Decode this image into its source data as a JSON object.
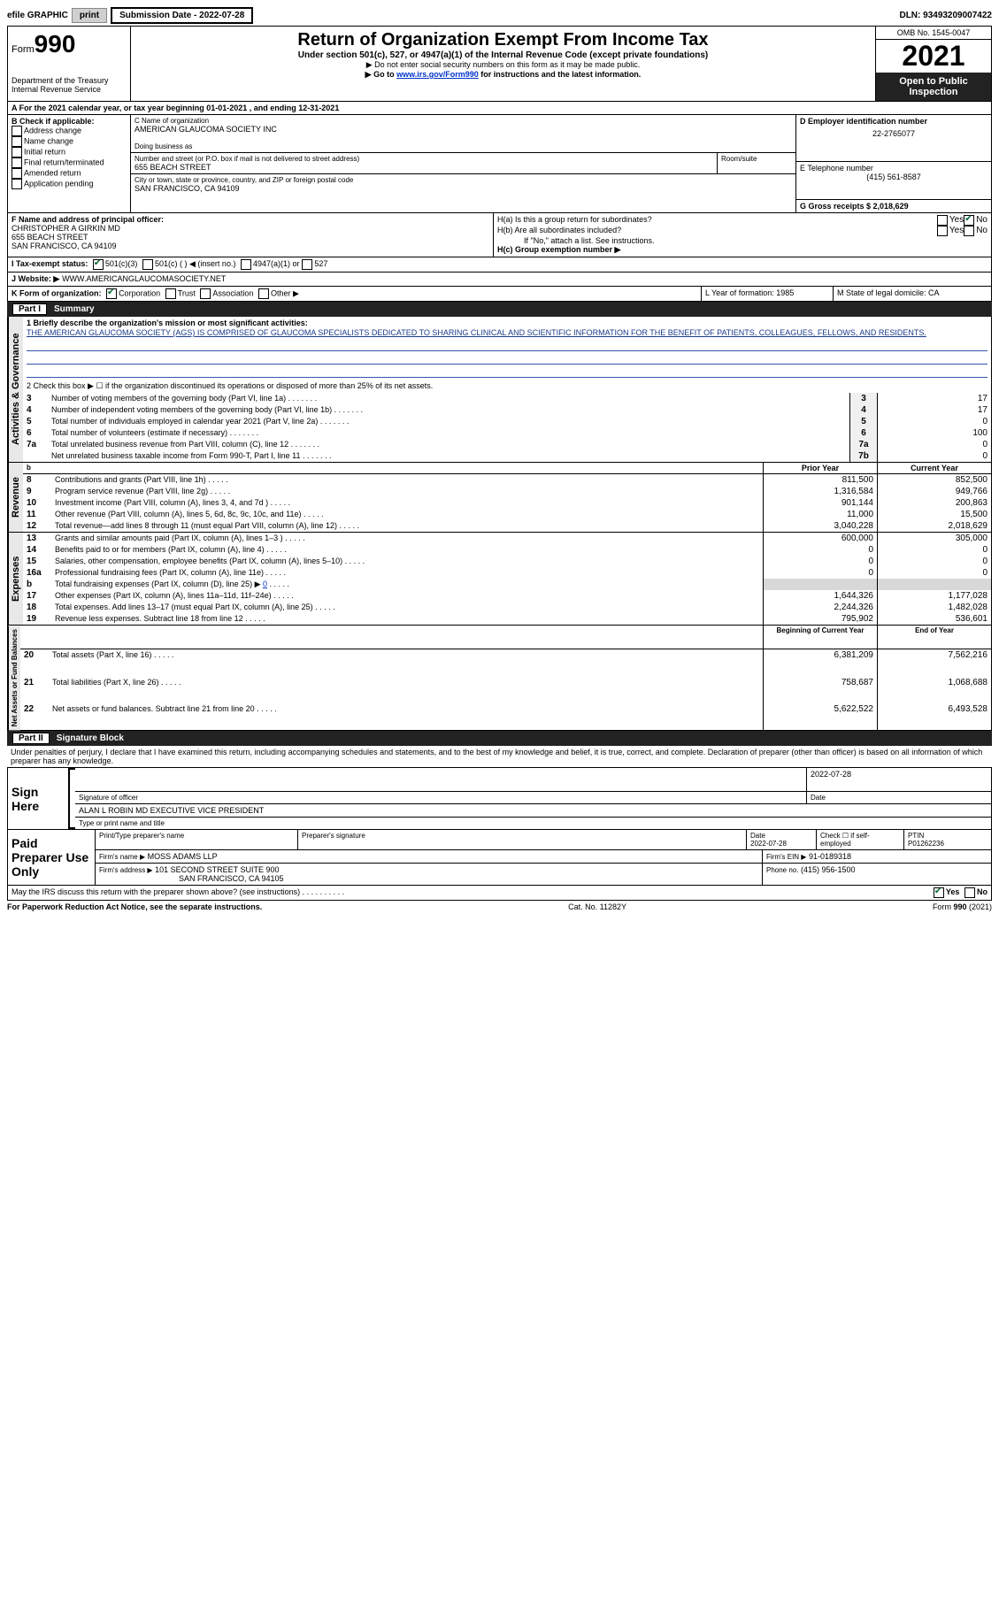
{
  "topbar": {
    "efile": "efile GRAPHIC",
    "print_btn": "print",
    "sub_date_label": "Submission Date - 2022-07-28",
    "dln": "DLN: 93493209007422"
  },
  "header": {
    "form_word": "Form",
    "form_num": "990",
    "dept": "Department of the Treasury",
    "irs": "Internal Revenue Service",
    "title": "Return of Organization Exempt From Income Tax",
    "sub": "Under section 501(c), 527, or 4947(a)(1) of the Internal Revenue Code (except private foundations)",
    "note1": "▶ Do not enter social security numbers on this form as it may be made public.",
    "note2_pre": "▶ Go to ",
    "note2_link": "www.irs.gov/Form990",
    "note2_post": " for instructions and the latest information.",
    "omb": "OMB No. 1545-0047",
    "year": "2021",
    "open": "Open to Public Inspection"
  },
  "A": {
    "line": "A For the 2021 calendar year, or tax year beginning 01-01-2021   , and ending 12-31-2021"
  },
  "B": {
    "label": "B Check if applicable:",
    "opts": [
      "Address change",
      "Name change",
      "Initial return",
      "Final return/terminated",
      "Amended return",
      "Application pending"
    ]
  },
  "C": {
    "name_label": "C Name of organization",
    "name": "AMERICAN GLAUCOMA SOCIETY INC",
    "dba_label": "Doing business as",
    "street_label": "Number and street (or P.O. box if mail is not delivered to street address)",
    "room_label": "Room/suite",
    "street": "655 BEACH STREET",
    "city_label": "City or town, state or province, country, and ZIP or foreign postal code",
    "city": "SAN FRANCISCO, CA  94109"
  },
  "D": {
    "label": "D Employer identification number",
    "val": "22-2765077"
  },
  "E": {
    "label": "E Telephone number",
    "val": "(415) 561-8587"
  },
  "G": {
    "label": "G Gross receipts $ 2,018,629"
  },
  "F": {
    "label": "F  Name and address of principal officer:",
    "name": "CHRISTOPHER A GIRKIN MD",
    "street": "655 BEACH STREET",
    "city": "SAN FRANCISCO, CA  94109"
  },
  "H": {
    "a": "H(a)  Is this a group return for subordinates?",
    "b": "H(b)  Are all subordinates included?",
    "b_note": "If \"No,\" attach a list. See instructions.",
    "c": "H(c)  Group exemption number ▶"
  },
  "I": {
    "label": "I  Tax-exempt status:",
    "o1": "501(c)(3)",
    "o2": "501(c) (  ) ◀ (insert no.)",
    "o3": "4947(a)(1) or",
    "o4": "527"
  },
  "J": {
    "label": "J   Website: ▶",
    "val": "WWW.AMERICANGLAUCOMASOCIETY.NET"
  },
  "K": {
    "label": "K Form of organization:",
    "o1": "Corporation",
    "o2": "Trust",
    "o3": "Association",
    "o4": "Other ▶"
  },
  "L": {
    "label": "L Year of formation: 1985"
  },
  "M": {
    "label": "M State of legal domicile: CA"
  },
  "part1": {
    "title": "Summary",
    "line1_label": "1  Briefly describe the organization's mission or most significant activities:",
    "mission": "THE AMERICAN GLAUCOMA SOCIETY (AGS) IS COMPRISED OF GLAUCOMA SPECIALISTS DEDICATED TO SHARING CLINICAL AND SCIENTIFIC INFORMATION FOR THE BENEFIT OF PATIENTS, COLLEAGUES, FELLOWS, AND RESIDENTS.",
    "line2": "2   Check this box ▶ ☐  if the organization discontinued its operations or disposed of more than 25% of its net assets.",
    "rows_simple": [
      {
        "n": "3",
        "t": "Number of voting members of the governing body (Part VI, line 1a)",
        "box": "3",
        "v": "17"
      },
      {
        "n": "4",
        "t": "Number of independent voting members of the governing body (Part VI, line 1b)",
        "box": "4",
        "v": "17"
      },
      {
        "n": "5",
        "t": "Total number of individuals employed in calendar year 2021 (Part V, line 2a)",
        "box": "5",
        "v": "0"
      },
      {
        "n": "6",
        "t": "Total number of volunteers (estimate if necessary)",
        "box": "6",
        "v": "100"
      },
      {
        "n": "7a",
        "t": "Total unrelated business revenue from Part VIII, column (C), line 12",
        "box": "7a",
        "v": "0"
      },
      {
        "n": "",
        "t": "Net unrelated business taxable income from Form 990-T, Part I, line 11",
        "box": "7b",
        "v": "0"
      }
    ],
    "prior_hdr": "Prior Year",
    "curr_hdr": "Current Year",
    "rev_rows": [
      {
        "n": "8",
        "t": "Contributions and grants (Part VIII, line 1h)",
        "p": "811,500",
        "c": "852,500"
      },
      {
        "n": "9",
        "t": "Program service revenue (Part VIII, line 2g)",
        "p": "1,316,584",
        "c": "949,766"
      },
      {
        "n": "10",
        "t": "Investment income (Part VIII, column (A), lines 3, 4, and 7d )",
        "p": "901,144",
        "c": "200,863"
      },
      {
        "n": "11",
        "t": "Other revenue (Part VIII, column (A), lines 5, 6d, 8c, 9c, 10c, and 11e)",
        "p": "11,000",
        "c": "15,500"
      },
      {
        "n": "12",
        "t": "Total revenue—add lines 8 through 11 (must equal Part VIII, column (A), line 12)",
        "p": "3,040,228",
        "c": "2,018,629"
      }
    ],
    "exp_rows": [
      {
        "n": "13",
        "t": "Grants and similar amounts paid (Part IX, column (A), lines 1–3 )",
        "p": "600,000",
        "c": "305,000"
      },
      {
        "n": "14",
        "t": "Benefits paid to or for members (Part IX, column (A), line 4)",
        "p": "0",
        "c": "0"
      },
      {
        "n": "15",
        "t": "Salaries, other compensation, employee benefits (Part IX, column (A), lines 5–10)",
        "p": "0",
        "c": "0"
      },
      {
        "n": "16a",
        "t": "Professional fundraising fees (Part IX, column (A), line 11e)",
        "p": "0",
        "c": "0"
      },
      {
        "n": "b",
        "t": "Total fundraising expenses (Part IX, column (D), line 25) ▶",
        "p": "__shade__",
        "c": "__shade__",
        "extra": "0"
      },
      {
        "n": "17",
        "t": "Other expenses (Part IX, column (A), lines 11a–11d, 11f–24e)",
        "p": "1,644,326",
        "c": "1,177,028"
      },
      {
        "n": "18",
        "t": "Total expenses. Add lines 13–17 (must equal Part IX, column (A), line 25)",
        "p": "2,244,326",
        "c": "1,482,028"
      },
      {
        "n": "19",
        "t": "Revenue less expenses. Subtract line 18 from line 12",
        "p": "795,902",
        "c": "536,601"
      }
    ],
    "na_hdr1": "Beginning of Current Year",
    "na_hdr2": "End of Year",
    "na_rows": [
      {
        "n": "20",
        "t": "Total assets (Part X, line 16)",
        "p": "6,381,209",
        "c": "7,562,216"
      },
      {
        "n": "21",
        "t": "Total liabilities (Part X, line 26)",
        "p": "758,687",
        "c": "1,068,688"
      },
      {
        "n": "22",
        "t": "Net assets or fund balances. Subtract line 21 from line 20",
        "p": "5,622,522",
        "c": "6,493,528"
      }
    ],
    "vtab_act": "Activities & Governance",
    "vtab_rev": "Revenue",
    "vtab_exp": "Expenses",
    "vtab_na": "Net Assets or Fund Balances"
  },
  "part2": {
    "title": "Signature Block",
    "decl": "Under penalties of perjury, I declare that I have examined this return, including accompanying schedules and statements, and to the best of my knowledge and belief, it is true, correct, and complete. Declaration of preparer (other than officer) is based on all information of which preparer has any knowledge.",
    "sign_here": "Sign Here",
    "sig_officer": "Signature of officer",
    "sig_date": "2022-07-28",
    "date_lbl": "Date",
    "typed": "ALAN L ROBIN MD  EXECUTIVE VICE PRESIDENT",
    "typed_lbl": "Type or print name and title",
    "paid": "Paid Preparer Use Only",
    "pt_name_lbl": "Print/Type preparer's name",
    "pt_sig_lbl": "Preparer's signature",
    "pt_date_lbl": "Date",
    "pt_date": "2022-07-28",
    "pt_check": "Check ☐ if self-employed",
    "ptin_lbl": "PTIN",
    "ptin": "P01262236",
    "firm_lbl": "Firm's name   ▶",
    "firm": "MOSS ADAMS LLP",
    "ein_lbl": "Firm's EIN ▶",
    "ein": "91-0189318",
    "addr_lbl": "Firm's address ▶",
    "addr1": "101 SECOND STREET SUITE 900",
    "addr2": "SAN FRANCISCO, CA  94105",
    "phone_lbl": "Phone no.",
    "phone": "(415) 956-1500",
    "discuss": "May the IRS discuss this return with the preparer shown above? (see instructions)",
    "yes": "Yes",
    "no": "No"
  },
  "footer": {
    "left": "For Paperwork Reduction Act Notice, see the separate instructions.",
    "mid": "Cat. No. 11282Y",
    "right": "Form 990 (2021)"
  }
}
